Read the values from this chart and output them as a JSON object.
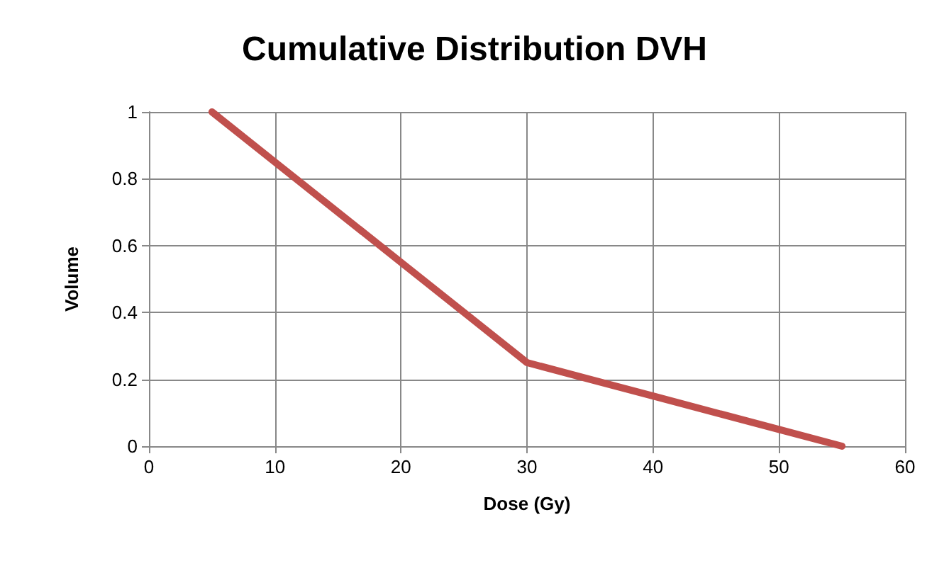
{
  "chart_data": {
    "type": "line",
    "title": "Cumulative Distribution DVH",
    "xlabel": "Dose (Gy)",
    "ylabel": "Volume",
    "x": [
      5,
      10,
      20,
      25,
      30,
      35,
      40,
      50,
      55
    ],
    "series": [
      {
        "color": "#c0504d",
        "values": [
          1,
          0.85,
          0.55,
          0.4,
          0.25,
          0.2,
          0.15,
          0.05,
          0
        ]
      }
    ],
    "xlim": [
      0,
      60
    ],
    "xticks": [
      0,
      10,
      20,
      30,
      40,
      50,
      60
    ],
    "ylim": [
      0,
      1
    ],
    "yticks": [
      0,
      0.2,
      0.4,
      0.6,
      0.8,
      1
    ],
    "grid": true,
    "marker": "none",
    "line_style": "solid"
  }
}
